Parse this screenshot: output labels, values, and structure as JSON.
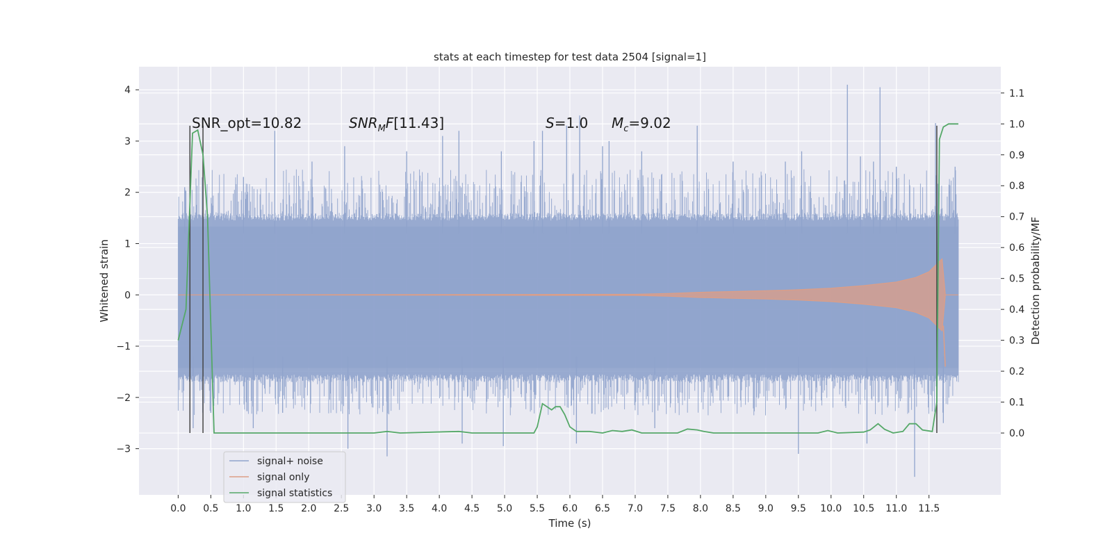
{
  "chart_data": {
    "type": "line",
    "title": "stats at each timestep for test data 2504 [signal=1]",
    "xlabel": "Time (s)",
    "ylabel_left": "Whitened strain",
    "ylabel_right": "Detection probability/MF",
    "xlim": [
      -0.6,
      12.6
    ],
    "ylim_left": [
      -3.9,
      4.45
    ],
    "ylim_right": [
      -0.2,
      1.185
    ],
    "x_ticks": [
      "0.0",
      "0.5",
      "1.0",
      "1.5",
      "2.0",
      "2.5",
      "3.0",
      "3.5",
      "4.0",
      "4.5",
      "5.0",
      "5.5",
      "6.0",
      "6.5",
      "7.0",
      "7.5",
      "8.0",
      "8.5",
      "9.0",
      "9.5",
      "10.0",
      "10.5",
      "11.0",
      "11.5"
    ],
    "y_ticks_left": [
      "−3",
      "−2",
      "−1",
      "0",
      "1",
      "2",
      "3",
      "4"
    ],
    "y_ticks_right": [
      "0.0",
      "0.1",
      "0.2",
      "0.3",
      "0.4",
      "0.5",
      "0.6",
      "0.7",
      "0.8",
      "0.9",
      "1.0",
      "1.1"
    ],
    "grid": true,
    "legend_position": "bottom-left",
    "annotations": {
      "snr_opt": "SNR_opt=10.82",
      "snr_mf": "[11.43]",
      "s_value": "=1.0",
      "mc_value": "=9.02"
    },
    "series": [
      {
        "name": "signal+ noise",
        "color": "#8fa3cc",
        "axis": "left",
        "x_range": [
          0,
          11.95
        ],
        "envelope_bulk": [
          -1.55,
          1.45
        ],
        "peaks": [
          {
            "x": 0.1,
            "y": 2.1
          },
          {
            "x": 0.18,
            "y": 3.2
          },
          {
            "x": 0.23,
            "y": -2.6
          },
          {
            "x": 0.5,
            "y": -2.3
          },
          {
            "x": 1.0,
            "y": 2.3
          },
          {
            "x": 1.15,
            "y": -2.6
          },
          {
            "x": 1.48,
            "y": 3.2
          },
          {
            "x": 1.6,
            "y": -2.3
          },
          {
            "x": 2.05,
            "y": 2.6
          },
          {
            "x": 2.55,
            "y": 2.9
          },
          {
            "x": 2.6,
            "y": -3.0
          },
          {
            "x": 3.2,
            "y": -3.15
          },
          {
            "x": 3.5,
            "y": 2.8
          },
          {
            "x": 4.05,
            "y": 3.1
          },
          {
            "x": 4.3,
            "y": 3.2
          },
          {
            "x": 4.35,
            "y": -2.9
          },
          {
            "x": 4.95,
            "y": 2.8
          },
          {
            "x": 4.98,
            "y": -2.95
          },
          {
            "x": 5.45,
            "y": 3.0
          },
          {
            "x": 5.58,
            "y": 3.2
          },
          {
            "x": 5.95,
            "y": 3.3
          },
          {
            "x": 6.1,
            "y": -2.9
          },
          {
            "x": 6.15,
            "y": 3.5
          },
          {
            "x": 6.5,
            "y": 2.9
          },
          {
            "x": 6.6,
            "y": 3.0
          },
          {
            "x": 7.1,
            "y": 2.8
          },
          {
            "x": 7.3,
            "y": -2.6
          },
          {
            "x": 7.95,
            "y": 3.3
          },
          {
            "x": 8.5,
            "y": 2.6
          },
          {
            "x": 9.3,
            "y": 2.6
          },
          {
            "x": 9.5,
            "y": -3.1
          },
          {
            "x": 9.55,
            "y": 2.8
          },
          {
            "x": 10.25,
            "y": 4.1
          },
          {
            "x": 10.45,
            "y": 2.7
          },
          {
            "x": 10.55,
            "y": -2.9
          },
          {
            "x": 10.65,
            "y": 2.6
          },
          {
            "x": 10.75,
            "y": 4.05
          },
          {
            "x": 11.0,
            "y": 2.5
          },
          {
            "x": 11.28,
            "y": -3.55
          },
          {
            "x": 11.6,
            "y": 3.35
          },
          {
            "x": 11.72,
            "y": -2.5
          },
          {
            "x": 11.9,
            "y": 2.5
          }
        ]
      },
      {
        "name": "signal only",
        "color": "#dd9e86",
        "axis": "left",
        "points": [
          [
            0,
            0.0
          ],
          [
            7.0,
            0.01
          ],
          [
            7.5,
            0.025
          ],
          [
            8.0,
            0.05
          ],
          [
            8.5,
            0.065
          ],
          [
            9.0,
            0.08
          ],
          [
            9.5,
            0.1
          ],
          [
            10.0,
            0.13
          ],
          [
            10.5,
            0.18
          ],
          [
            11.0,
            0.25
          ],
          [
            11.3,
            0.34
          ],
          [
            11.5,
            0.45
          ],
          [
            11.62,
            0.6
          ],
          [
            11.7,
            0.7
          ],
          [
            11.75,
            0.0
          ],
          [
            11.95,
            0.0
          ]
        ]
      },
      {
        "name": "signal statistics",
        "color": "#55a868",
        "axis": "right",
        "points": [
          [
            0.0,
            0.3
          ],
          [
            0.12,
            0.4
          ],
          [
            0.22,
            0.97
          ],
          [
            0.3,
            0.98
          ],
          [
            0.38,
            0.9
          ],
          [
            0.45,
            0.7
          ],
          [
            0.55,
            0.0
          ],
          [
            2.0,
            0.0
          ],
          [
            3.0,
            0.0
          ],
          [
            3.2,
            0.005
          ],
          [
            3.4,
            0.0
          ],
          [
            4.3,
            0.005
          ],
          [
            4.5,
            0.0
          ],
          [
            5.45,
            0.0
          ],
          [
            5.5,
            0.02
          ],
          [
            5.58,
            0.095
          ],
          [
            5.65,
            0.085
          ],
          [
            5.72,
            0.075
          ],
          [
            5.78,
            0.085
          ],
          [
            5.85,
            0.085
          ],
          [
            5.92,
            0.06
          ],
          [
            6.0,
            0.02
          ],
          [
            6.1,
            0.005
          ],
          [
            6.3,
            0.005
          ],
          [
            6.5,
            0.0
          ],
          [
            6.65,
            0.008
          ],
          [
            6.8,
            0.005
          ],
          [
            6.95,
            0.01
          ],
          [
            7.1,
            0.0
          ],
          [
            7.65,
            0.0
          ],
          [
            7.8,
            0.013
          ],
          [
            7.95,
            0.01
          ],
          [
            8.05,
            0.005
          ],
          [
            8.2,
            0.0
          ],
          [
            9.8,
            0.0
          ],
          [
            9.95,
            0.008
          ],
          [
            10.1,
            0.0
          ],
          [
            10.5,
            0.003
          ],
          [
            10.6,
            0.01
          ],
          [
            10.72,
            0.03
          ],
          [
            10.82,
            0.012
          ],
          [
            10.95,
            0.0
          ],
          [
            11.1,
            0.005
          ],
          [
            11.2,
            0.03
          ],
          [
            11.3,
            0.03
          ],
          [
            11.4,
            0.01
          ],
          [
            11.55,
            0.005
          ],
          [
            11.62,
            0.1
          ],
          [
            11.66,
            0.95
          ],
          [
            11.72,
            0.99
          ],
          [
            11.8,
            1.0
          ],
          [
            11.95,
            1.0
          ]
        ]
      }
    ],
    "vertical_markers": [
      0.18,
      0.38,
      11.62
    ]
  }
}
